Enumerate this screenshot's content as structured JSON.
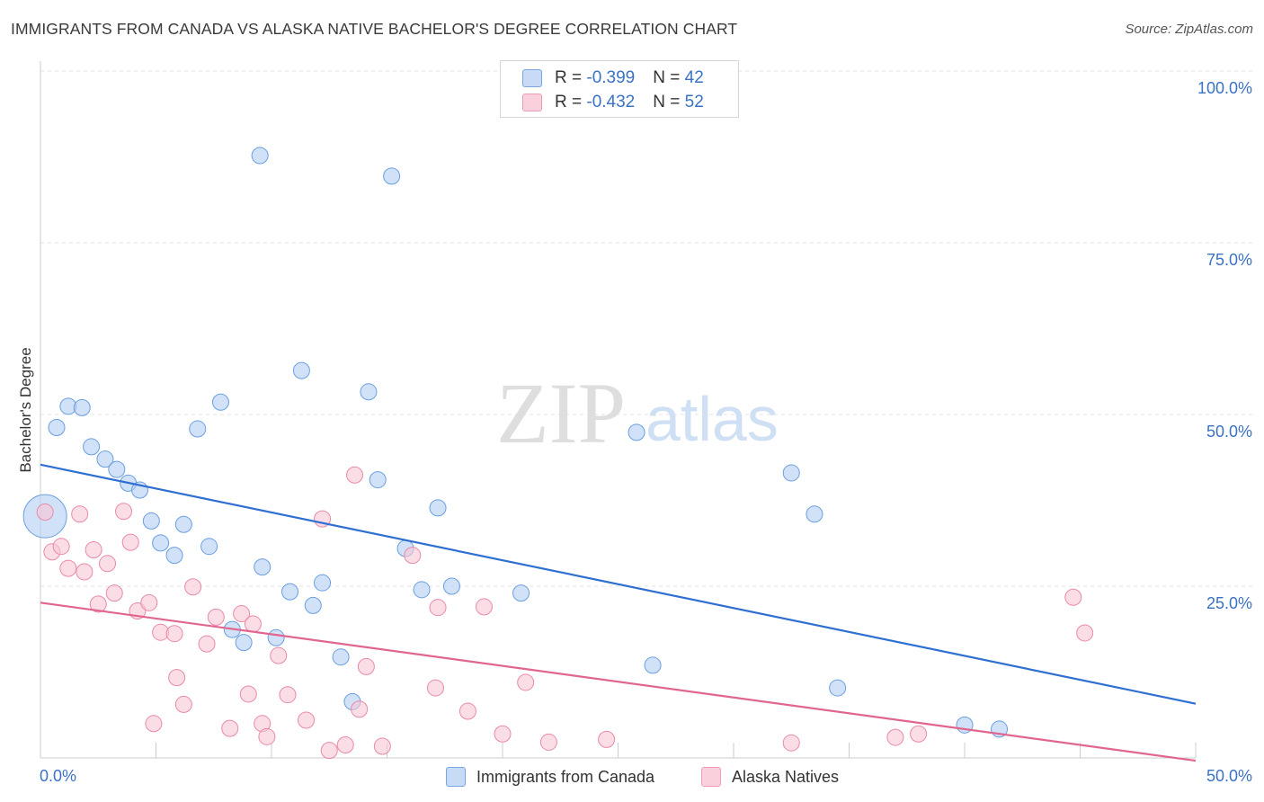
{
  "header": {
    "title": "IMMIGRANTS FROM CANADA VS ALASKA NATIVE BACHELOR'S DEGREE CORRELATION CHART",
    "source": "Source: ZipAtlas.com"
  },
  "watermark": {
    "zip": "ZIP",
    "atlas": "atlas"
  },
  "legend": {
    "rows": [
      {
        "r_label": "R = ",
        "r_value": "-0.399",
        "n_label": "N = ",
        "n_value": "42",
        "color": "#a9c8f2"
      },
      {
        "r_label": "R = ",
        "r_value": "-0.432",
        "n_label": "N = ",
        "n_value": "52",
        "color": "#f7bccd"
      }
    ]
  },
  "chart_data": {
    "type": "scatter",
    "title": "IMMIGRANTS FROM CANADA VS ALASKA NATIVE BACHELOR'S DEGREE CORRELATION CHART",
    "xlabel": "",
    "ylabel": "Bachelor's Degree",
    "xlim": [
      0,
      50
    ],
    "ylim": [
      0,
      100
    ],
    "x_tick_labels": [
      "0.0%",
      "50.0%"
    ],
    "y_tick_labels": [
      "100.0%",
      "75.0%",
      "50.0%",
      "25.0%"
    ],
    "y_ticks": [
      100,
      75,
      50,
      25
    ],
    "grid": true,
    "legend_position": "top-center",
    "series": [
      {
        "name": "Immigrants from Canada",
        "color": "#6a9fe0",
        "fill": "#b3cdf2",
        "line_color": "#2f6fd1",
        "trend": {
          "x": [
            0,
            50
          ],
          "y": [
            42.7,
            7.9
          ]
        },
        "points": [
          [
            0.2,
            35.2
          ],
          [
            0.7,
            48.1
          ],
          [
            1.2,
            51.2
          ],
          [
            1.8,
            51.0
          ],
          [
            2.2,
            45.3
          ],
          [
            2.8,
            43.5
          ],
          [
            3.3,
            42.0
          ],
          [
            3.8,
            40.0
          ],
          [
            4.3,
            39.0
          ],
          [
            4.8,
            34.5
          ],
          [
            5.2,
            31.3
          ],
          [
            5.8,
            29.5
          ],
          [
            6.2,
            34.0
          ],
          [
            6.8,
            47.9
          ],
          [
            7.3,
            30.8
          ],
          [
            7.8,
            51.8
          ],
          [
            8.3,
            18.7
          ],
          [
            8.8,
            16.8
          ],
          [
            9.5,
            87.7
          ],
          [
            9.6,
            27.8
          ],
          [
            10.2,
            17.5
          ],
          [
            10.8,
            24.2
          ],
          [
            11.3,
            56.4
          ],
          [
            11.8,
            22.2
          ],
          [
            12.2,
            25.5
          ],
          [
            13.0,
            14.7
          ],
          [
            13.5,
            8.2
          ],
          [
            14.2,
            53.3
          ],
          [
            14.6,
            40.5
          ],
          [
            15.2,
            84.7
          ],
          [
            15.8,
            30.5
          ],
          [
            16.5,
            24.5
          ],
          [
            17.2,
            36.4
          ],
          [
            17.8,
            25.0
          ],
          [
            20.8,
            24.0
          ],
          [
            25.8,
            47.4
          ],
          [
            26.5,
            13.5
          ],
          [
            32.5,
            41.5
          ],
          [
            33.5,
            35.5
          ],
          [
            34.5,
            10.2
          ],
          [
            40.0,
            4.8
          ],
          [
            41.5,
            4.2
          ]
        ]
      },
      {
        "name": "Alaska Natives",
        "color": "#e88aa6",
        "fill": "#f8c6d5",
        "line_color": "#e0668f",
        "trend": {
          "x": [
            0,
            50
          ],
          "y": [
            22.6,
            -0.4
          ]
        },
        "points": [
          [
            0.2,
            35.8
          ],
          [
            0.5,
            30.0
          ],
          [
            0.9,
            30.8
          ],
          [
            1.2,
            27.6
          ],
          [
            1.7,
            35.5
          ],
          [
            1.9,
            27.1
          ],
          [
            2.3,
            30.3
          ],
          [
            2.5,
            22.4
          ],
          [
            2.9,
            28.3
          ],
          [
            3.2,
            24.0
          ],
          [
            3.6,
            35.9
          ],
          [
            3.9,
            31.4
          ],
          [
            4.2,
            21.4
          ],
          [
            4.7,
            22.6
          ],
          [
            4.9,
            5.0
          ],
          [
            5.2,
            18.3
          ],
          [
            5.8,
            18.1
          ],
          [
            5.9,
            11.7
          ],
          [
            6.2,
            7.8
          ],
          [
            6.6,
            24.9
          ],
          [
            7.2,
            16.6
          ],
          [
            7.6,
            20.5
          ],
          [
            8.2,
            4.3
          ],
          [
            8.7,
            21.0
          ],
          [
            9.0,
            9.3
          ],
          [
            9.2,
            19.5
          ],
          [
            9.6,
            5.0
          ],
          [
            9.8,
            3.1
          ],
          [
            10.3,
            14.9
          ],
          [
            10.7,
            9.2
          ],
          [
            11.5,
            5.5
          ],
          [
            12.2,
            34.8
          ],
          [
            12.5,
            1.1
          ],
          [
            13.2,
            1.9
          ],
          [
            13.6,
            41.2
          ],
          [
            13.8,
            7.1
          ],
          [
            14.1,
            13.3
          ],
          [
            14.8,
            1.7
          ],
          [
            16.1,
            29.5
          ],
          [
            17.1,
            10.2
          ],
          [
            17.2,
            21.9
          ],
          [
            18.5,
            6.8
          ],
          [
            19.2,
            22.0
          ],
          [
            20.0,
            3.5
          ],
          [
            21.0,
            11.0
          ],
          [
            22.0,
            2.3
          ],
          [
            24.5,
            2.7
          ],
          [
            32.5,
            2.2
          ],
          [
            37.0,
            3.0
          ],
          [
            38.0,
            3.5
          ],
          [
            44.7,
            23.4
          ],
          [
            45.2,
            18.2
          ]
        ]
      }
    ]
  }
}
